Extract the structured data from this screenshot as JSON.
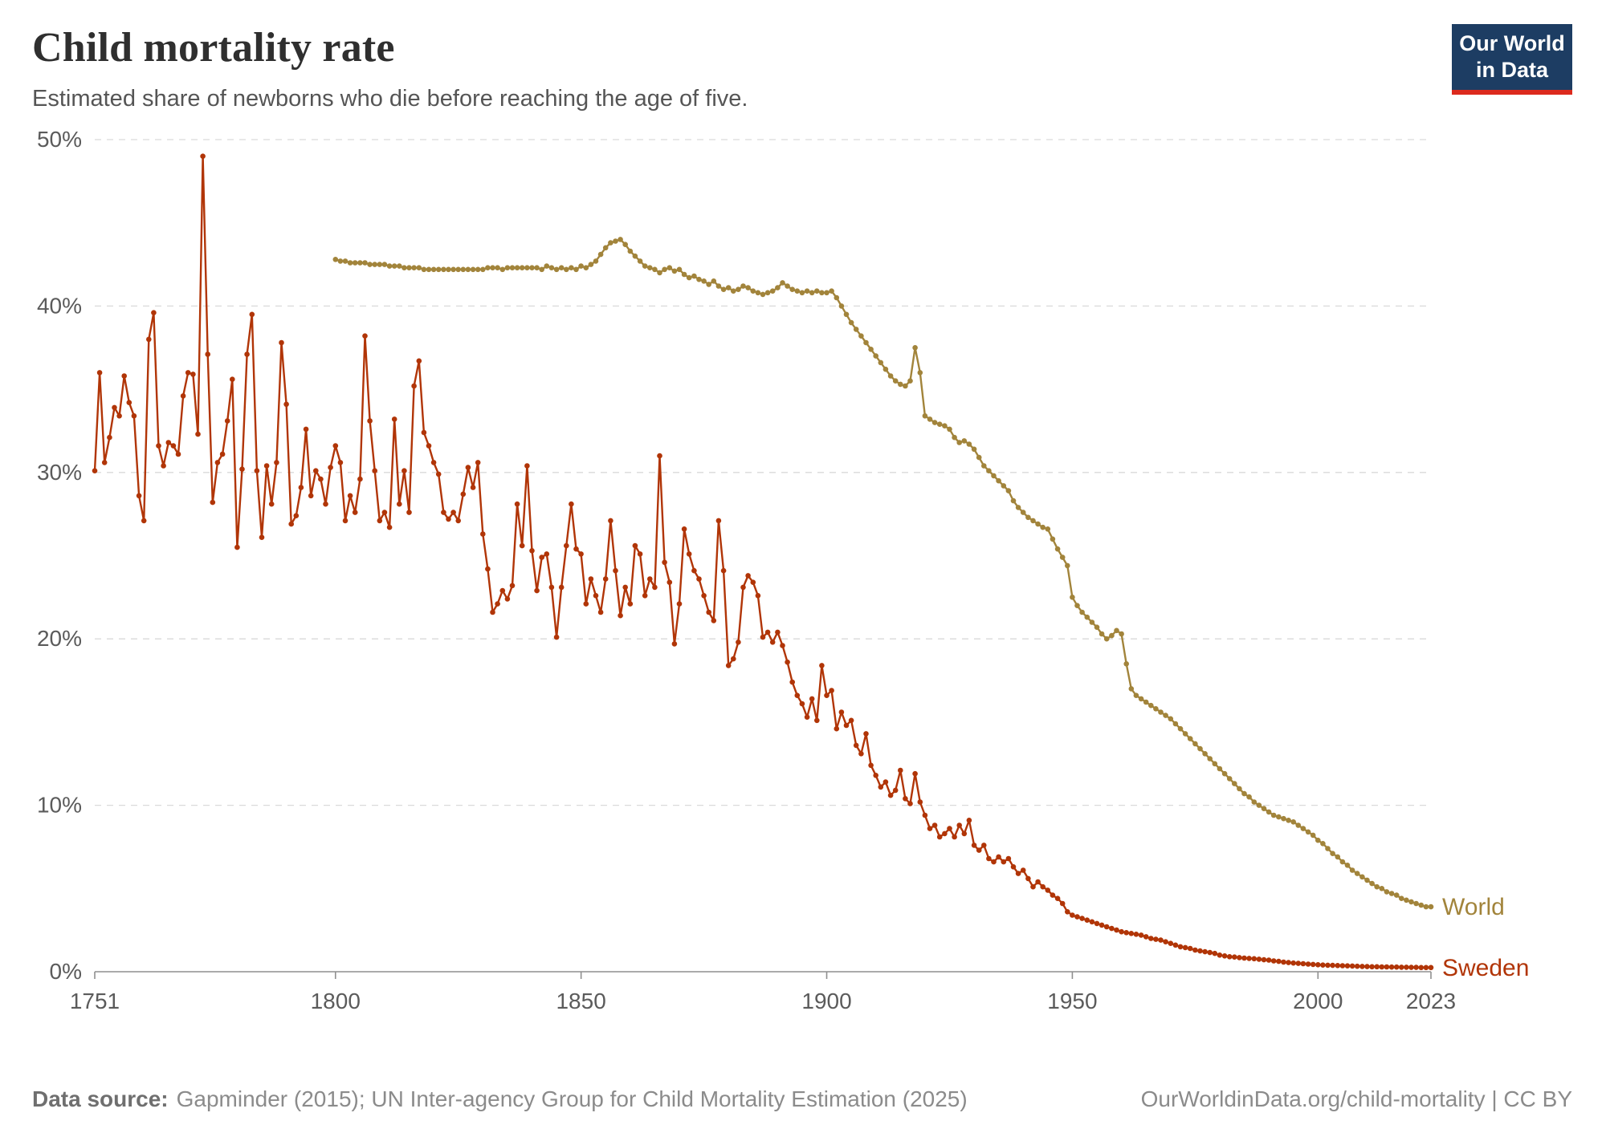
{
  "header": {
    "title": "Child mortality rate",
    "subtitle": "Estimated share of newborns who die before reaching the age of five.",
    "logo": {
      "line1": "Our World",
      "line2": "in Data"
    }
  },
  "footer": {
    "source_label": "Data source:",
    "source_text": "Gapminder (2015); UN Inter-agency Group for Child Mortality Estimation (2025)",
    "right_text": "OurWorldinData.org/child-mortality | CC BY"
  },
  "colors": {
    "logo_bg": "#1d3d63",
    "logo_stripe": "#dc2a1d",
    "grid": "#dadada",
    "axis": "#8f8f8f",
    "tick_label": "#5b5b5b"
  },
  "chart_data": {
    "type": "line",
    "title": "Child mortality rate",
    "subtitle": "Estimated share of newborns who die before reaching the age of five.",
    "unit": "%",
    "grid": true,
    "legend_position": "end-of-line-labels",
    "x_axis": {
      "min": 1751,
      "max": 2023,
      "ticks": [
        1751,
        1800,
        1850,
        1900,
        1950,
        2000,
        2023
      ]
    },
    "y_axis": {
      "min": 0,
      "max": 50,
      "ticks": [
        0,
        10,
        20,
        30,
        40,
        50
      ],
      "tick_suffix": "%"
    },
    "series": [
      {
        "name": "World",
        "color": "#a2843b",
        "start_year": 1800,
        "values": [
          42.8,
          42.7,
          42.7,
          42.6,
          42.6,
          42.6,
          42.6,
          42.5,
          42.5,
          42.5,
          42.5,
          42.4,
          42.4,
          42.4,
          42.3,
          42.3,
          42.3,
          42.3,
          42.2,
          42.2,
          42.2,
          42.2,
          42.2,
          42.2,
          42.2,
          42.2,
          42.2,
          42.2,
          42.2,
          42.2,
          42.2,
          42.3,
          42.3,
          42.3,
          42.2,
          42.3,
          42.3,
          42.3,
          42.3,
          42.3,
          42.3,
          42.3,
          42.2,
          42.4,
          42.3,
          42.2,
          42.3,
          42.2,
          42.3,
          42.2,
          42.4,
          42.3,
          42.5,
          42.7,
          43.1,
          43.5,
          43.8,
          43.9,
          44.0,
          43.7,
          43.3,
          43.0,
          42.7,
          42.4,
          42.3,
          42.2,
          42.0,
          42.2,
          42.3,
          42.1,
          42.2,
          41.9,
          41.7,
          41.8,
          41.6,
          41.5,
          41.3,
          41.5,
          41.2,
          41.0,
          41.1,
          40.9,
          41.0,
          41.2,
          41.1,
          40.9,
          40.8,
          40.7,
          40.8,
          40.9,
          41.1,
          41.4,
          41.2,
          41.0,
          40.9,
          40.8,
          40.9,
          40.8,
          40.9,
          40.8,
          40.8,
          40.9,
          40.5,
          40.0,
          39.5,
          39.0,
          38.6,
          38.2,
          37.8,
          37.4,
          37.0,
          36.6,
          36.2,
          35.8,
          35.5,
          35.3,
          35.2,
          35.5,
          37.5,
          36.0,
          33.4,
          33.2,
          33.0,
          32.9,
          32.8,
          32.6,
          32.1,
          31.8,
          31.9,
          31.7,
          31.4,
          30.9,
          30.4,
          30.1,
          29.8,
          29.5,
          29.2,
          28.9,
          28.3,
          27.9,
          27.6,
          27.3,
          27.1,
          26.9,
          26.7,
          26.6,
          26.0,
          25.4,
          24.9,
          24.4,
          22.5,
          22.0,
          21.6,
          21.3,
          21.0,
          20.7,
          20.3,
          20.0,
          20.2,
          20.5,
          20.3,
          18.5,
          17.0,
          16.6,
          16.4,
          16.2,
          16.0,
          15.8,
          15.6,
          15.4,
          15.2,
          14.9,
          14.6,
          14.3,
          14.0,
          13.7,
          13.4,
          13.1,
          12.8,
          12.5,
          12.2,
          11.9,
          11.6,
          11.3,
          11.0,
          10.7,
          10.5,
          10.2,
          10.0,
          9.8,
          9.6,
          9.4,
          9.3,
          9.2,
          9.1,
          9.0,
          8.8,
          8.6,
          8.4,
          8.2,
          7.9,
          7.7,
          7.4,
          7.1,
          6.9,
          6.6,
          6.4,
          6.1,
          5.9,
          5.7,
          5.5,
          5.3,
          5.1,
          5.0,
          4.8,
          4.7,
          4.6,
          4.4,
          4.3,
          4.2,
          4.1,
          4.0,
          3.9,
          3.9
        ]
      },
      {
        "name": "Sweden",
        "color": "#b13507",
        "start_year": 1751,
        "values": [
          30.1,
          36.0,
          30.6,
          32.1,
          33.9,
          33.4,
          35.8,
          34.2,
          33.4,
          28.6,
          27.1,
          38.0,
          39.6,
          31.6,
          30.4,
          31.8,
          31.6,
          31.1,
          34.6,
          36.0,
          35.9,
          32.3,
          49.0,
          37.1,
          28.2,
          30.6,
          31.1,
          33.1,
          35.6,
          25.5,
          30.2,
          37.1,
          39.5,
          30.1,
          26.1,
          30.4,
          28.1,
          30.6,
          37.8,
          34.1,
          26.9,
          27.4,
          29.1,
          32.6,
          28.6,
          30.1,
          29.6,
          28.1,
          30.3,
          31.6,
          30.6,
          27.1,
          28.6,
          27.6,
          29.6,
          38.2,
          33.1,
          30.1,
          27.1,
          27.6,
          26.7,
          33.2,
          28.1,
          30.1,
          27.6,
          35.2,
          36.7,
          32.4,
          31.6,
          30.6,
          29.9,
          27.6,
          27.2,
          27.6,
          27.1,
          28.7,
          30.3,
          29.1,
          30.6,
          26.3,
          24.2,
          21.6,
          22.1,
          22.9,
          22.4,
          23.2,
          28.1,
          25.6,
          30.4,
          25.3,
          22.9,
          24.9,
          25.1,
          23.1,
          20.1,
          23.1,
          25.6,
          28.1,
          25.4,
          25.1,
          22.1,
          23.6,
          22.6,
          21.6,
          23.6,
          27.1,
          24.1,
          21.4,
          23.1,
          22.1,
          25.6,
          25.1,
          22.6,
          23.6,
          23.1,
          31.0,
          24.6,
          23.4,
          19.7,
          22.1,
          26.6,
          25.1,
          24.1,
          23.6,
          22.6,
          21.6,
          21.1,
          27.1,
          24.1,
          18.4,
          18.8,
          19.8,
          23.1,
          23.8,
          23.4,
          22.6,
          20.1,
          20.4,
          19.8,
          20.4,
          19.6,
          18.6,
          17.4,
          16.6,
          16.1,
          15.3,
          16.4,
          15.1,
          18.4,
          16.6,
          16.9,
          14.6,
          15.6,
          14.8,
          15.1,
          13.6,
          13.1,
          14.3,
          12.4,
          11.8,
          11.1,
          11.4,
          10.6,
          10.9,
          12.1,
          10.4,
          10.1,
          11.9,
          10.2,
          9.4,
          8.6,
          8.8,
          8.1,
          8.3,
          8.6,
          8.1,
          8.8,
          8.3,
          9.1,
          7.6,
          7.3,
          7.6,
          6.8,
          6.6,
          6.9,
          6.6,
          6.8,
          6.3,
          5.9,
          6.1,
          5.6,
          5.1,
          5.4,
          5.1,
          4.9,
          4.6,
          4.4,
          4.1,
          3.6,
          3.4,
          3.3,
          3.2,
          3.1,
          3.0,
          2.9,
          2.8,
          2.7,
          2.6,
          2.5,
          2.4,
          2.35,
          2.3,
          2.25,
          2.2,
          2.1,
          2.0,
          1.95,
          1.9,
          1.8,
          1.7,
          1.6,
          1.5,
          1.45,
          1.4,
          1.3,
          1.25,
          1.2,
          1.15,
          1.1,
          1.0,
          0.95,
          0.9,
          0.88,
          0.85,
          0.82,
          0.8,
          0.78,
          0.75,
          0.72,
          0.7,
          0.65,
          0.62,
          0.58,
          0.55,
          0.52,
          0.5,
          0.48,
          0.46,
          0.44,
          0.42,
          0.4,
          0.39,
          0.38,
          0.37,
          0.36,
          0.35,
          0.34,
          0.33,
          0.32,
          0.31,
          0.3,
          0.3,
          0.29,
          0.29,
          0.28,
          0.28,
          0.27,
          0.27,
          0.26,
          0.26,
          0.25,
          0.25,
          0.25
        ]
      }
    ]
  }
}
